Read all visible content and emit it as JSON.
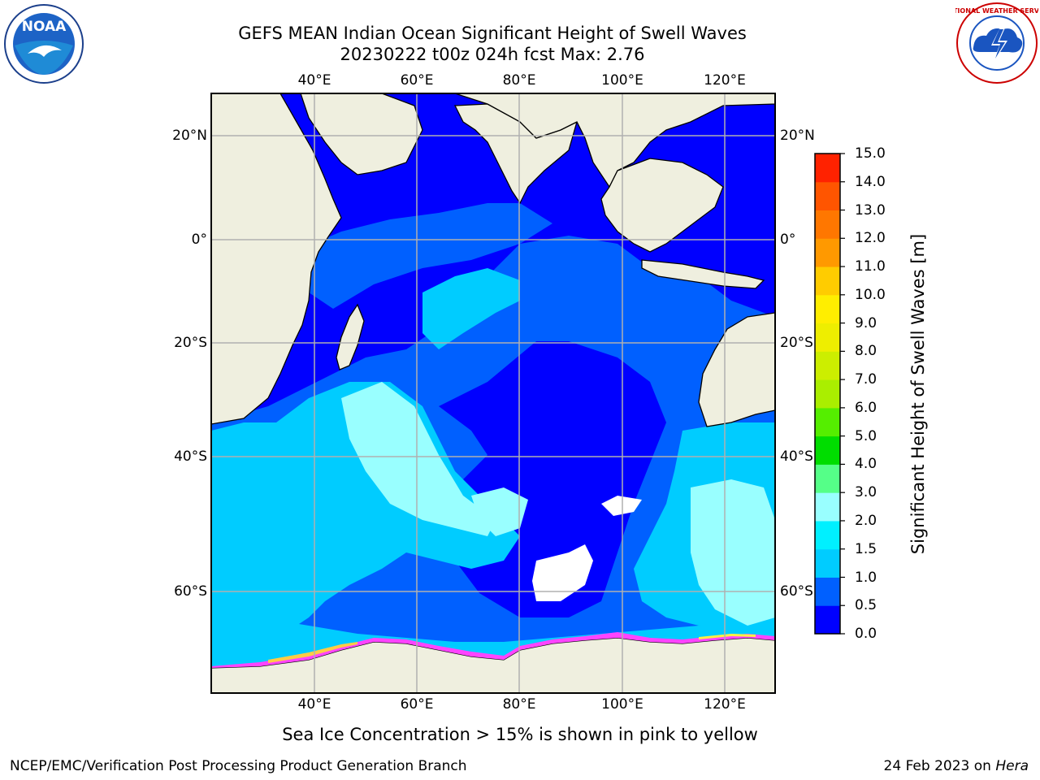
{
  "title": "GEFS MEAN Indian Ocean Significant Height of Swell Waves",
  "subtitle": "20230222 t00z 024h fcst   Max: 2.76",
  "logos": {
    "left": "noaa-logo",
    "right": "nws-logo",
    "left_text": "NOAA",
    "right_text": "NATIONAL WEATHER SERVICE"
  },
  "map": {
    "lon_ticks": [
      "40°E",
      "60°E",
      "80°E",
      "100°E",
      "120°E"
    ],
    "lat_ticks_left": [
      "20°N",
      "0°",
      "20°S",
      "40°S",
      "60°S"
    ],
    "lat_ticks_right": [
      "20°N",
      "0°",
      "20°S",
      "40°S",
      "60°S"
    ],
    "colors": {
      "land": "#efefdf",
      "coast": "#000000",
      "grid": "#b0b0b0",
      "sea_ice": [
        "#ff44ff",
        "#ff88cc",
        "#ffcc44",
        "#ffff44"
      ]
    }
  },
  "colorbar": {
    "title": "Significant Height of Swell Waves [m]",
    "levels": [
      "0.0",
      "0.5",
      "1.0",
      "1.5",
      "2.0",
      "3.0",
      "4.0",
      "5.0",
      "6.0",
      "7.0",
      "8.0",
      "9.0",
      "10.0",
      "11.0",
      "12.0",
      "13.0",
      "14.0",
      "15.0"
    ],
    "colors": [
      "#0000ff",
      "#0060ff",
      "#00ccff",
      "#00f0ff",
      "#99ffff",
      "#55ff88",
      "#00dd00",
      "#55ee00",
      "#aaee00",
      "#ccee00",
      "#eeee00",
      "#ffee00",
      "#ffcc00",
      "#ff9900",
      "#ff7700",
      "#ff5500",
      "#ff2200"
    ]
  },
  "caption": "Sea Ice Concentration > 15% is shown in pink to yellow",
  "footer": {
    "left": "NCEP/EMC/Verification Post Processing Product Generation Branch",
    "right_date": "24 Feb 2023 on ",
    "right_host": "Hera"
  }
}
